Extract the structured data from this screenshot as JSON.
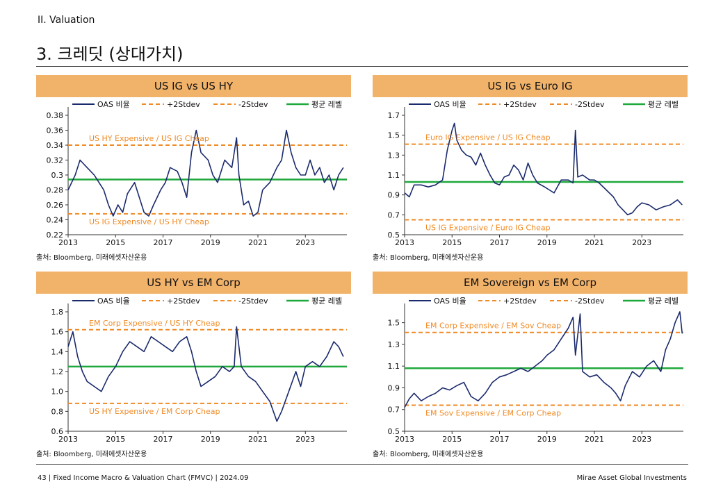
{
  "header": {
    "section": "II. Valuation",
    "title": "3. 크레딧 (상대가치)"
  },
  "legend_labels": [
    "OAS 비율",
    "+2Stdev",
    "-2Stdev",
    "평균 레벨"
  ],
  "colors": {
    "series": "#1a2a6c",
    "band": "#f08a24",
    "mean": "#1fa83c",
    "annotation": "#f08a24",
    "header_bg": "#f1b26a"
  },
  "source": "출처: Bloomberg, 미래에셋자산운용",
  "footer": {
    "left": "43 | Fixed Income Macro & Valuation Chart (FMVC) | 2024.09",
    "right": "Mirae Asset Global Investments"
  },
  "chart_data": [
    {
      "type": "line",
      "title": "US IG vs US HY",
      "x_ticks": [
        "2013",
        "2015",
        "2017",
        "2019",
        "2021",
        "2023"
      ],
      "x_range": [
        2013.0,
        2024.75
      ],
      "ylim": [
        0.22,
        0.38
      ],
      "y_ticks": [
        "0.22",
        "0.24",
        "0.26",
        "0.28",
        "0.3",
        "0.32",
        "0.34",
        "0.36",
        "0.38"
      ],
      "plus2": 0.34,
      "minus2": 0.248,
      "mean": 0.294,
      "annot_top": "US HY Expensive / US IG Cheap",
      "annot_bottom": "US IG Expensive / US HY Cheap",
      "series": {
        "name": "OAS 비율",
        "points": [
          [
            2013.0,
            0.28
          ],
          [
            2013.3,
            0.3
          ],
          [
            2013.5,
            0.32
          ],
          [
            2013.8,
            0.31
          ],
          [
            2014.1,
            0.3
          ],
          [
            2014.3,
            0.29
          ],
          [
            2014.5,
            0.28
          ],
          [
            2014.7,
            0.26
          ],
          [
            2014.9,
            0.245
          ],
          [
            2015.1,
            0.26
          ],
          [
            2015.3,
            0.25
          ],
          [
            2015.5,
            0.275
          ],
          [
            2015.8,
            0.29
          ],
          [
            2016.0,
            0.27
          ],
          [
            2016.2,
            0.25
          ],
          [
            2016.4,
            0.245
          ],
          [
            2016.6,
            0.26
          ],
          [
            2016.9,
            0.28
          ],
          [
            2017.1,
            0.29
          ],
          [
            2017.3,
            0.31
          ],
          [
            2017.6,
            0.305
          ],
          [
            2017.8,
            0.29
          ],
          [
            2018.0,
            0.27
          ],
          [
            2018.2,
            0.33
          ],
          [
            2018.4,
            0.36
          ],
          [
            2018.6,
            0.33
          ],
          [
            2018.9,
            0.32
          ],
          [
            2019.1,
            0.3
          ],
          [
            2019.3,
            0.29
          ],
          [
            2019.6,
            0.32
          ],
          [
            2019.9,
            0.31
          ],
          [
            2020.1,
            0.35
          ],
          [
            2020.2,
            0.3
          ],
          [
            2020.4,
            0.26
          ],
          [
            2020.6,
            0.265
          ],
          [
            2020.8,
            0.245
          ],
          [
            2021.0,
            0.25
          ],
          [
            2021.2,
            0.28
          ],
          [
            2021.5,
            0.29
          ],
          [
            2021.8,
            0.31
          ],
          [
            2022.0,
            0.32
          ],
          [
            2022.2,
            0.36
          ],
          [
            2022.4,
            0.33
          ],
          [
            2022.6,
            0.31
          ],
          [
            2022.8,
            0.3
          ],
          [
            2023.0,
            0.3
          ],
          [
            2023.2,
            0.32
          ],
          [
            2023.4,
            0.3
          ],
          [
            2023.6,
            0.31
          ],
          [
            2023.8,
            0.29
          ],
          [
            2024.0,
            0.3
          ],
          [
            2024.2,
            0.28
          ],
          [
            2024.4,
            0.3
          ],
          [
            2024.6,
            0.31
          ]
        ]
      }
    },
    {
      "type": "line",
      "title": "US IG vs Euro IG",
      "x_ticks": [
        "2013",
        "2015",
        "2017",
        "2019",
        "2021",
        "2023"
      ],
      "x_range": [
        2013.0,
        2024.75
      ],
      "ylim": [
        0.5,
        1.7
      ],
      "y_ticks": [
        "0.5",
        "0.7",
        "0.9",
        "1.1",
        "1.3",
        "1.5",
        "1.7"
      ],
      "plus2": 1.41,
      "minus2": 0.65,
      "mean": 1.03,
      "annot_top": "Euro IG Expensive / US IG Cheap",
      "annot_bottom": "US IG Expensive / Euro IG Cheap",
      "series": {
        "name": "OAS 비율",
        "points": [
          [
            2013.0,
            0.92
          ],
          [
            2013.2,
            0.88
          ],
          [
            2013.4,
            1.0
          ],
          [
            2013.7,
            1.0
          ],
          [
            2014.0,
            0.98
          ],
          [
            2014.3,
            1.0
          ],
          [
            2014.6,
            1.05
          ],
          [
            2014.8,
            1.35
          ],
          [
            2015.0,
            1.55
          ],
          [
            2015.1,
            1.62
          ],
          [
            2015.2,
            1.45
          ],
          [
            2015.4,
            1.35
          ],
          [
            2015.6,
            1.3
          ],
          [
            2015.8,
            1.28
          ],
          [
            2016.0,
            1.2
          ],
          [
            2016.2,
            1.32
          ],
          [
            2016.4,
            1.2
          ],
          [
            2016.6,
            1.1
          ],
          [
            2016.8,
            1.02
          ],
          [
            2017.0,
            1.0
          ],
          [
            2017.2,
            1.08
          ],
          [
            2017.4,
            1.1
          ],
          [
            2017.6,
            1.2
          ],
          [
            2017.8,
            1.15
          ],
          [
            2018.0,
            1.05
          ],
          [
            2018.2,
            1.22
          ],
          [
            2018.4,
            1.1
          ],
          [
            2018.6,
            1.02
          ],
          [
            2018.9,
            0.98
          ],
          [
            2019.1,
            0.95
          ],
          [
            2019.3,
            0.92
          ],
          [
            2019.6,
            1.05
          ],
          [
            2019.9,
            1.05
          ],
          [
            2020.1,
            1.02
          ],
          [
            2020.2,
            1.55
          ],
          [
            2020.3,
            1.08
          ],
          [
            2020.5,
            1.1
          ],
          [
            2020.8,
            1.05
          ],
          [
            2021.0,
            1.05
          ],
          [
            2021.2,
            1.02
          ],
          [
            2021.5,
            0.95
          ],
          [
            2021.8,
            0.88
          ],
          [
            2022.0,
            0.8
          ],
          [
            2022.2,
            0.75
          ],
          [
            2022.4,
            0.7
          ],
          [
            2022.6,
            0.72
          ],
          [
            2022.8,
            0.78
          ],
          [
            2023.0,
            0.82
          ],
          [
            2023.3,
            0.8
          ],
          [
            2023.6,
            0.75
          ],
          [
            2023.9,
            0.78
          ],
          [
            2024.2,
            0.8
          ],
          [
            2024.5,
            0.85
          ],
          [
            2024.7,
            0.8
          ]
        ]
      }
    },
    {
      "type": "line",
      "title": "US HY vs EM Corp",
      "x_ticks": [
        "2013",
        "2015",
        "2017",
        "2019",
        "2021",
        "2023"
      ],
      "x_range": [
        2013.0,
        2024.75
      ],
      "ylim": [
        0.6,
        1.8
      ],
      "y_ticks": [
        "0.6",
        "0.8",
        "1.0",
        "1.2",
        "1.4",
        "1.6",
        "1.8"
      ],
      "plus2": 1.62,
      "minus2": 0.88,
      "mean": 1.25,
      "annot_top": "EM Corp Expensive / US HY Cheap",
      "annot_bottom": "US HY Expensive / EM Corp Cheap",
      "series": {
        "name": "OAS 비율",
        "points": [
          [
            2013.0,
            1.45
          ],
          [
            2013.2,
            1.6
          ],
          [
            2013.4,
            1.35
          ],
          [
            2013.6,
            1.2
          ],
          [
            2013.8,
            1.1
          ],
          [
            2014.1,
            1.05
          ],
          [
            2014.4,
            1.0
          ],
          [
            2014.7,
            1.15
          ],
          [
            2015.0,
            1.25
          ],
          [
            2015.3,
            1.4
          ],
          [
            2015.6,
            1.5
          ],
          [
            2015.9,
            1.45
          ],
          [
            2016.2,
            1.4
          ],
          [
            2016.5,
            1.55
          ],
          [
            2016.8,
            1.5
          ],
          [
            2017.1,
            1.45
          ],
          [
            2017.4,
            1.4
          ],
          [
            2017.7,
            1.5
          ],
          [
            2018.0,
            1.55
          ],
          [
            2018.2,
            1.4
          ],
          [
            2018.4,
            1.2
          ],
          [
            2018.6,
            1.05
          ],
          [
            2018.9,
            1.1
          ],
          [
            2019.2,
            1.15
          ],
          [
            2019.5,
            1.25
          ],
          [
            2019.8,
            1.2
          ],
          [
            2020.0,
            1.25
          ],
          [
            2020.1,
            1.65
          ],
          [
            2020.3,
            1.25
          ],
          [
            2020.6,
            1.15
          ],
          [
            2020.9,
            1.1
          ],
          [
            2021.2,
            1.0
          ],
          [
            2021.5,
            0.9
          ],
          [
            2021.8,
            0.7
          ],
          [
            2022.0,
            0.8
          ],
          [
            2022.3,
            1.0
          ],
          [
            2022.6,
            1.2
          ],
          [
            2022.8,
            1.05
          ],
          [
            2023.0,
            1.25
          ],
          [
            2023.3,
            1.3
          ],
          [
            2023.6,
            1.25
          ],
          [
            2023.9,
            1.35
          ],
          [
            2024.2,
            1.5
          ],
          [
            2024.4,
            1.45
          ],
          [
            2024.6,
            1.35
          ]
        ]
      }
    },
    {
      "type": "line",
      "title": "EM Sovereign vs EM Corp",
      "x_ticks": [
        "2013",
        "2015",
        "2017",
        "2019",
        "2021",
        "2023"
      ],
      "x_range": [
        2013.0,
        2024.75
      ],
      "ylim": [
        0.5,
        1.6
      ],
      "y_ticks": [
        "0.5",
        "0.7",
        "0.9",
        "1.1",
        "1.3",
        "1.5"
      ],
      "plus2": 1.41,
      "minus2": 0.74,
      "mean": 1.08,
      "annot_top": "EM Corp Expensive / EM Sov Cheap",
      "annot_bottom": "EM Sov Expensive / EM Corp Cheap",
      "series": {
        "name": "OAS 비율",
        "points": [
          [
            2013.0,
            0.72
          ],
          [
            2013.2,
            0.8
          ],
          [
            2013.4,
            0.85
          ],
          [
            2013.7,
            0.78
          ],
          [
            2014.0,
            0.82
          ],
          [
            2014.3,
            0.85
          ],
          [
            2014.6,
            0.9
          ],
          [
            2014.9,
            0.88
          ],
          [
            2015.2,
            0.92
          ],
          [
            2015.5,
            0.95
          ],
          [
            2015.8,
            0.82
          ],
          [
            2016.1,
            0.78
          ],
          [
            2016.4,
            0.85
          ],
          [
            2016.7,
            0.95
          ],
          [
            2017.0,
            1.0
          ],
          [
            2017.3,
            1.02
          ],
          [
            2017.6,
            1.05
          ],
          [
            2017.9,
            1.08
          ],
          [
            2018.2,
            1.05
          ],
          [
            2018.5,
            1.1
          ],
          [
            2018.8,
            1.15
          ],
          [
            2019.0,
            1.2
          ],
          [
            2019.3,
            1.25
          ],
          [
            2019.6,
            1.35
          ],
          [
            2019.9,
            1.45
          ],
          [
            2020.1,
            1.55
          ],
          [
            2020.2,
            1.2
          ],
          [
            2020.4,
            1.58
          ],
          [
            2020.5,
            1.05
          ],
          [
            2020.8,
            1.0
          ],
          [
            2021.1,
            1.02
          ],
          [
            2021.4,
            0.95
          ],
          [
            2021.7,
            0.9
          ],
          [
            2021.9,
            0.85
          ],
          [
            2022.1,
            0.78
          ],
          [
            2022.3,
            0.92
          ],
          [
            2022.6,
            1.05
          ],
          [
            2022.9,
            1.0
          ],
          [
            2023.2,
            1.1
          ],
          [
            2023.5,
            1.15
          ],
          [
            2023.8,
            1.05
          ],
          [
            2024.0,
            1.25
          ],
          [
            2024.2,
            1.35
          ],
          [
            2024.4,
            1.5
          ],
          [
            2024.6,
            1.6
          ],
          [
            2024.7,
            1.4
          ]
        ]
      }
    }
  ]
}
